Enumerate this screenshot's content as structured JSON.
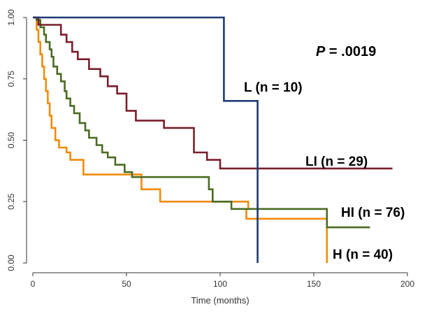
{
  "chart_data": {
    "type": "line",
    "xlabel": "Time (months)",
    "ylabel": "",
    "xlim": [
      0,
      200
    ],
    "ylim": [
      0,
      1
    ],
    "x_ticks": [
      "0",
      "50",
      "100",
      "150",
      "200"
    ],
    "y_ticks": [
      "0.00",
      "0.25",
      "0.50",
      "0.75",
      "1.00"
    ],
    "grid": false,
    "annotation": {
      "prefix": "P",
      "text": " = .0019"
    },
    "colors": {
      "L": "#1f3b73",
      "LI": "#7a1f2b",
      "HI": "#4a6b23",
      "H": "#f08c0a"
    },
    "series": [
      {
        "name": "L (n = 10)",
        "key": "L",
        "steps": [
          [
            0,
            1.0
          ],
          [
            102,
            1.0
          ],
          [
            102,
            0.66
          ],
          [
            120,
            0.66
          ],
          [
            120,
            0.0
          ]
        ]
      },
      {
        "name": "LI (n = 29)",
        "key": "LI",
        "steps": [
          [
            0,
            1.0
          ],
          [
            3,
            1.0
          ],
          [
            3,
            0.97
          ],
          [
            15,
            0.97
          ],
          [
            15,
            0.93
          ],
          [
            18,
            0.93
          ],
          [
            18,
            0.9
          ],
          [
            21,
            0.9
          ],
          [
            21,
            0.86
          ],
          [
            24,
            0.86
          ],
          [
            24,
            0.83
          ],
          [
            30,
            0.83
          ],
          [
            30,
            0.79
          ],
          [
            36,
            0.79
          ],
          [
            36,
            0.76
          ],
          [
            40,
            0.76
          ],
          [
            40,
            0.72
          ],
          [
            45,
            0.72
          ],
          [
            45,
            0.69
          ],
          [
            50,
            0.69
          ],
          [
            50,
            0.62
          ],
          [
            55,
            0.62
          ],
          [
            55,
            0.58
          ],
          [
            70,
            0.58
          ],
          [
            70,
            0.55
          ],
          [
            86,
            0.55
          ],
          [
            86,
            0.45
          ],
          [
            93,
            0.45
          ],
          [
            93,
            0.42
          ],
          [
            100,
            0.42
          ],
          [
            100,
            0.385
          ],
          [
            192,
            0.385
          ]
        ]
      },
      {
        "name": "HI (n = 76)",
        "key": "HI",
        "steps": [
          [
            0,
            1.0
          ],
          [
            2,
            1.0
          ],
          [
            2,
            0.99
          ],
          [
            4,
            0.99
          ],
          [
            4,
            0.96
          ],
          [
            6,
            0.96
          ],
          [
            6,
            0.93
          ],
          [
            7,
            0.93
          ],
          [
            7,
            0.9
          ],
          [
            9,
            0.9
          ],
          [
            9,
            0.87
          ],
          [
            10,
            0.87
          ],
          [
            10,
            0.84
          ],
          [
            11,
            0.84
          ],
          [
            11,
            0.8
          ],
          [
            13,
            0.8
          ],
          [
            13,
            0.77
          ],
          [
            15,
            0.77
          ],
          [
            15,
            0.74
          ],
          [
            17,
            0.74
          ],
          [
            17,
            0.7
          ],
          [
            18,
            0.7
          ],
          [
            18,
            0.67
          ],
          [
            20,
            0.67
          ],
          [
            20,
            0.64
          ],
          [
            22,
            0.64
          ],
          [
            22,
            0.61
          ],
          [
            25,
            0.61
          ],
          [
            25,
            0.57
          ],
          [
            28,
            0.57
          ],
          [
            28,
            0.54
          ],
          [
            30,
            0.54
          ],
          [
            30,
            0.51
          ],
          [
            34,
            0.51
          ],
          [
            34,
            0.48
          ],
          [
            37,
            0.48
          ],
          [
            37,
            0.45
          ],
          [
            40,
            0.45
          ],
          [
            40,
            0.43
          ],
          [
            44,
            0.43
          ],
          [
            44,
            0.4
          ],
          [
            49,
            0.4
          ],
          [
            49,
            0.37
          ],
          [
            53,
            0.37
          ],
          [
            53,
            0.35
          ],
          [
            94,
            0.35
          ],
          [
            94,
            0.3
          ],
          [
            96,
            0.3
          ],
          [
            96,
            0.25
          ],
          [
            106,
            0.25
          ],
          [
            106,
            0.22
          ],
          [
            157,
            0.22
          ],
          [
            157,
            0.145
          ],
          [
            180,
            0.145
          ]
        ]
      },
      {
        "name": "H (n = 40)",
        "key": "H",
        "steps": [
          [
            0,
            1.0
          ],
          [
            2,
            1.0
          ],
          [
            2,
            0.95
          ],
          [
            3,
            0.95
          ],
          [
            3,
            0.9
          ],
          [
            4,
            0.9
          ],
          [
            4,
            0.85
          ],
          [
            5,
            0.85
          ],
          [
            5,
            0.8
          ],
          [
            6,
            0.8
          ],
          [
            6,
            0.75
          ],
          [
            7,
            0.75
          ],
          [
            7,
            0.7
          ],
          [
            8,
            0.7
          ],
          [
            8,
            0.65
          ],
          [
            9,
            0.65
          ],
          [
            9,
            0.6
          ],
          [
            10,
            0.6
          ],
          [
            10,
            0.55
          ],
          [
            12,
            0.55
          ],
          [
            12,
            0.5
          ],
          [
            14,
            0.5
          ],
          [
            14,
            0.47
          ],
          [
            18,
            0.47
          ],
          [
            18,
            0.45
          ],
          [
            20,
            0.45
          ],
          [
            20,
            0.42
          ],
          [
            27,
            0.42
          ],
          [
            27,
            0.36
          ],
          [
            58,
            0.36
          ],
          [
            58,
            0.3
          ],
          [
            68,
            0.3
          ],
          [
            68,
            0.25
          ],
          [
            115,
            0.25
          ],
          [
            115,
            0.22
          ],
          [
            113,
            0.22
          ],
          [
            113,
            0.22
          ],
          [
            114,
            0.22
          ],
          [
            114,
            0.18
          ],
          [
            157,
            0.18
          ],
          [
            157,
            0.0
          ]
        ]
      }
    ]
  }
}
